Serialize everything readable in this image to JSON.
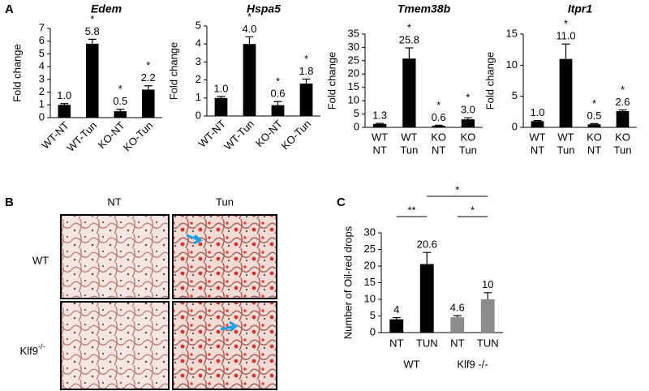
{
  "panel_labels": [
    "A",
    "B",
    "C"
  ],
  "micrograph": {
    "columns": [
      "NT",
      "Tun"
    ],
    "rows": [
      {
        "name": "WT"
      },
      {
        "name": "Klf9",
        "sup": "-/-"
      }
    ]
  },
  "chart_data": [
    {
      "type": "bar",
      "title": "Edem",
      "ylabel": "Fold change",
      "categories": [
        "WT-NT",
        "WT-Tun",
        "KO-NT",
        "KO-Tun"
      ],
      "values": [
        1.0,
        5.8,
        0.5,
        2.2
      ],
      "value_labels": [
        "1.0",
        "5.8",
        "0.5",
        "2.2"
      ],
      "errors": [
        0.1,
        0.35,
        0.15,
        0.3
      ],
      "significant": [
        false,
        true,
        true,
        true
      ],
      "star_label": "*",
      "colors": [
        "#000000",
        "#000000",
        "#000000",
        "#000000"
      ],
      "ylim": [
        0,
        7
      ],
      "yticks": [
        0,
        1,
        2,
        3,
        4,
        5,
        6,
        7
      ]
    },
    {
      "type": "bar",
      "title": "Hspa5",
      "ylabel": "Fold change",
      "categories": [
        "WT-NT",
        "WT-Tun",
        "KO-NT",
        "KO-Tun"
      ],
      "values": [
        1.0,
        4.0,
        0.6,
        1.8
      ],
      "value_labels": [
        "1.0",
        "4.0",
        "0.6",
        "1.8"
      ],
      "errors": [
        0.08,
        0.4,
        0.2,
        0.25
      ],
      "significant": [
        false,
        true,
        true,
        true
      ],
      "star_label": "*",
      "colors": [
        "#000000",
        "#000000",
        "#000000",
        "#000000"
      ],
      "ylim": [
        0,
        5
      ],
      "yticks": [
        0,
        1,
        2,
        3,
        4,
        5
      ]
    },
    {
      "type": "bar",
      "title": "Tmem38b",
      "ylabel": "Fold change",
      "categories": [
        [
          "WT",
          "NT"
        ],
        [
          "WT",
          "Tun"
        ],
        [
          "KO",
          "NT"
        ],
        [
          "KO",
          "Tun"
        ]
      ],
      "values": [
        1.3,
        25.8,
        0.6,
        3.0
      ],
      "value_labels": [
        "1.3",
        "25.8",
        "0.6",
        "3.0"
      ],
      "errors": [
        0.2,
        4,
        0.2,
        0.6
      ],
      "significant": [
        false,
        true,
        true,
        true
      ],
      "star_label": "*",
      "colors": [
        "#000000",
        "#000000",
        "#000000",
        "#000000"
      ],
      "ylim": [
        0,
        35
      ],
      "yticks": [
        0,
        5,
        10,
        15,
        20,
        25,
        30,
        35
      ]
    },
    {
      "type": "bar",
      "title": "Itpr1",
      "ylabel": "Fold change",
      "categories": [
        [
          "WT",
          "NT"
        ],
        [
          "WT",
          "Tun"
        ],
        [
          "KO",
          "NT"
        ],
        [
          "KO",
          "Tun"
        ]
      ],
      "values": [
        1.0,
        11.0,
        0.5,
        2.6
      ],
      "value_labels": [
        "1.0",
        "11.0",
        "0.5",
        "2.6"
      ],
      "errors": [
        0.1,
        2.4,
        0.1,
        0.2
      ],
      "significant": [
        false,
        true,
        true,
        true
      ],
      "star_label": "*",
      "colors": [
        "#000000",
        "#000000",
        "#000000",
        "#000000"
      ],
      "ylim": [
        0,
        15
      ],
      "yticks": [
        0,
        5,
        10,
        15
      ]
    },
    {
      "type": "bar",
      "ylabel": "Number of Oil-red drops",
      "categories": [
        "NT",
        "TUN",
        "NT",
        "TUN"
      ],
      "groups": [
        "WT",
        "Klf9 -/-"
      ],
      "values": [
        4,
        20.6,
        4.6,
        10
      ],
      "errors": [
        0.5,
        3.5,
        0.5,
        2
      ],
      "colors": [
        "#000000",
        "#000000",
        "#8c8c8c",
        "#8c8c8c"
      ],
      "brackets": [
        {
          "from": 0,
          "to": 1,
          "label": "**"
        },
        {
          "from": 1,
          "to": 3,
          "label": "*"
        },
        {
          "from": 2,
          "to": 3,
          "label": "*"
        }
      ],
      "ylim": [
        0,
        30
      ],
      "yticks": [
        0,
        5,
        10,
        15,
        20,
        25,
        30
      ]
    }
  ]
}
